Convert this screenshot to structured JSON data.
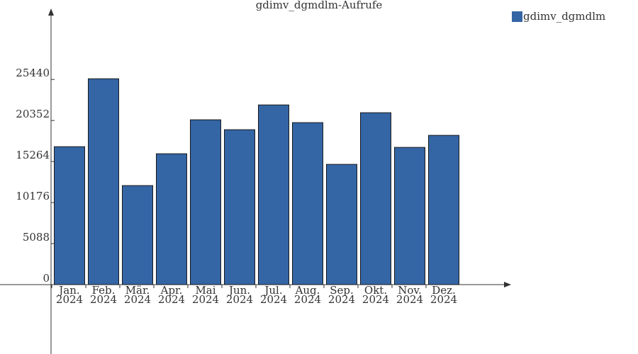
{
  "chart_data": {
    "type": "bar",
    "title": "gdimv_dgmdlm-Aufrufe",
    "categories": [
      "Jan. 2024",
      "Feb. 2024",
      "Mär. 2024",
      "Apr. 2024",
      "Mai 2024",
      "Jun. 2024",
      "Jul. 2024",
      "Aug. 2024",
      "Sep. 2024",
      "Okt. 2024",
      "Nov. 2024",
      "Dez. 2024"
    ],
    "series": [
      {
        "name": "gdimv_dgmdlm",
        "color": "#3465a4",
        "values": [
          17105,
          25528,
          12282,
          16229,
          20440,
          19212,
          22282,
          20089,
          14913,
          21317,
          17018,
          18510
        ]
      }
    ],
    "ylim": [
      0,
      33800
    ],
    "yticks": [
      0,
      5088,
      10176,
      15264,
      20352,
      25440
    ],
    "legend": "top-right"
  }
}
